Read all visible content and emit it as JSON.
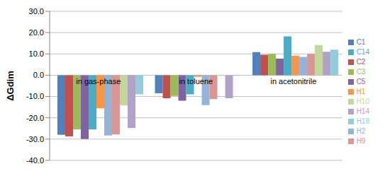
{
  "chart_data": {
    "type": "bar",
    "y_label": "ΔGdim",
    "categories": [
      "in gas-phase",
      "in toluene",
      "in acetonitrile"
    ],
    "series": [
      {
        "name": "C1",
        "color": "#4F81BD",
        "values": [
          -28,
          -8.5,
          10.8
        ]
      },
      {
        "name": "C2",
        "color": "#C0504D",
        "values": [
          -28.7,
          -10.8,
          9.6
        ]
      },
      {
        "name": "C3",
        "color": "#9BBB59",
        "values": [
          -25.5,
          -9.7,
          10
        ]
      },
      {
        "name": "C5",
        "color": "#8064A2",
        "values": [
          -30,
          -12,
          7.8
        ]
      },
      {
        "name": "C14",
        "color": "#4BACC6",
        "values": [
          -25.5,
          -9,
          18.2
        ]
      },
      {
        "name": "H1",
        "color": "#F79646",
        "values": [
          -15.5,
          -0.8,
          9.2
        ]
      },
      {
        "name": "H2",
        "color": "#95B3D7",
        "values": [
          -28.3,
          -14,
          8.6
        ]
      },
      {
        "name": "H9",
        "color": "#D99694",
        "values": [
          -27.8,
          -11.2,
          10
        ]
      },
      {
        "name": "H10",
        "color": "#C3D69B",
        "values": [
          -14.2,
          -0.3,
          14.2
        ]
      },
      {
        "name": "H14",
        "color": "#B3A2C7",
        "values": [
          -24.7,
          -10.8,
          11
        ]
      },
      {
        "name": "H18",
        "color": "#93CDDD",
        "values": [
          -9,
          -0.3,
          12
        ]
      }
    ],
    "ylim": [
      -40,
      30
    ],
    "yticks": [
      {
        "value": -40,
        "label": "-40.0"
      },
      {
        "value": -30,
        "label": "-30.0"
      },
      {
        "value": -20,
        "label": "-20.0"
      },
      {
        "value": -10,
        "label": "-10.0"
      },
      {
        "value": 0,
        "label": "0.0"
      },
      {
        "value": 10,
        "label": "10.0"
      },
      {
        "value": 20,
        "label": "20.0"
      },
      {
        "value": 30,
        "label": "30.0"
      }
    ],
    "grid": true,
    "legend": "right"
  }
}
